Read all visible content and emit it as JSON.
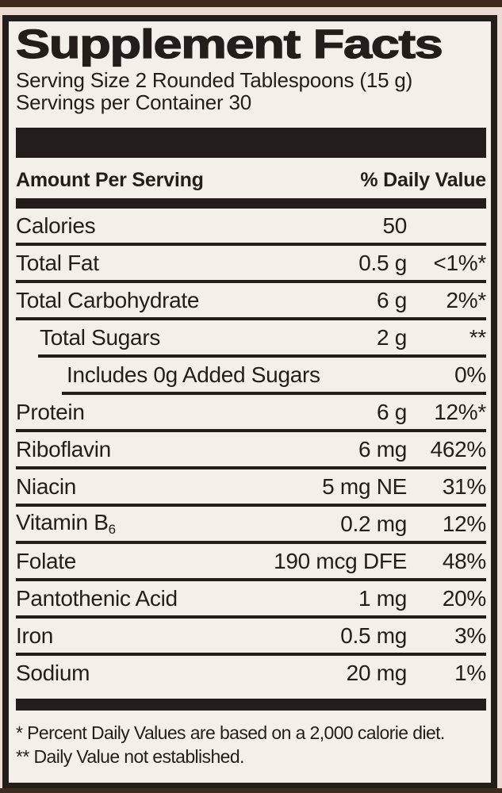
{
  "panel": {
    "title": "Supplement Facts",
    "serving_size": "Serving Size 2 Rounded Tablespoons (15 g)",
    "servings_per_container": "Servings per Container 30",
    "columns": {
      "amount": "Amount Per Serving",
      "daily_value": "% Daily Value"
    },
    "rows": [
      {
        "name": "Calories",
        "amount": "50",
        "daily_value": "",
        "indent": 0
      },
      {
        "name": "Total Fat",
        "amount": "0.5 g",
        "daily_value": "<1%*",
        "indent": 0
      },
      {
        "name": "Total Carbohydrate",
        "amount": "6 g",
        "daily_value": "2%*",
        "indent": 0
      },
      {
        "name": "Total Sugars",
        "amount": "2 g",
        "daily_value": "**",
        "indent": 1
      },
      {
        "name": "Includes 0g Added Sugars",
        "amount": "",
        "daily_value": "0%",
        "indent": 2
      },
      {
        "name": "Protein",
        "amount": "6 g",
        "daily_value": "12%*",
        "indent": 0
      },
      {
        "name": "Riboflavin",
        "amount": "6 mg",
        "daily_value": "462%",
        "indent": 0
      },
      {
        "name": "Niacin",
        "amount": "5 mg NE",
        "daily_value": "31%",
        "indent": 0
      },
      {
        "name": "Vitamin B",
        "name_subscript": "6",
        "amount": "0.2 mg",
        "daily_value": "12%",
        "indent": 0
      },
      {
        "name": "Folate",
        "amount": "190 mcg DFE",
        "daily_value": "48%",
        "indent": 0
      },
      {
        "name": "Pantothenic Acid",
        "amount": "1 mg",
        "daily_value": "20%",
        "indent": 0
      },
      {
        "name": "Iron",
        "amount": "0.5 mg",
        "daily_value": "3%",
        "indent": 0
      },
      {
        "name": "Sodium",
        "amount": "20 mg",
        "daily_value": "1%",
        "indent": 0
      }
    ],
    "footnotes": [
      "* Percent Daily Values are based on a 2,000 calorie diet.",
      "** Daily Value not established."
    ],
    "colors": {
      "ink": "#241e1a",
      "panel_background": "#f3f0ea",
      "outer_margin": "#eadcd4",
      "package_edge": "#3e2a1d"
    }
  }
}
